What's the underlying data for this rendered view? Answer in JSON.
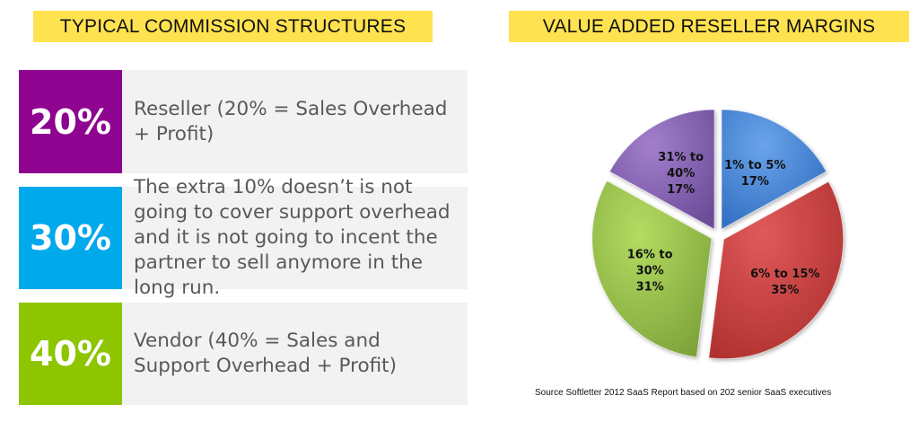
{
  "left": {
    "title": "TYPICAL COMMISSION STRUCTURES",
    "rows": [
      {
        "percent": "20%",
        "text": "Reseller (20% = Sales Overhead + Profit)",
        "color": "#8e0390"
      },
      {
        "percent": "30%",
        "text": "The extra 10% doesn’t is not going to cover support overhead and it is not going to incent the partner to sell anymore in the long run.",
        "color": "#00a8ec"
      },
      {
        "percent": "40%",
        "text": "Vendor (40% = Sales and Support Overhead + Profit)",
        "color": "#8dc500"
      }
    ]
  },
  "right": {
    "title": "VALUE ADDED RESELLER MARGINS",
    "source": "Source Softletter 2012 SaaS Report based on 202 senior SaaS executives"
  },
  "colors": {
    "title_bg": "#fee250",
    "row_bg": "#f2f2f2",
    "row_text": "#595959"
  },
  "chart_data": {
    "type": "pie",
    "title": "VALUE ADDED RESELLER MARGINS",
    "categories": [
      "1% to 5%",
      "6% to 15%",
      "16% to 30%",
      "31% to 40%"
    ],
    "values": [
      17,
      35,
      31,
      17
    ],
    "labels": [
      [
        "1% to 5%",
        "17%"
      ],
      [
        "6% to 15%",
        "35%"
      ],
      [
        "16% to",
        "30%",
        "31%"
      ],
      [
        "31% to",
        "40%",
        "17%"
      ]
    ],
    "colors": [
      "#4a86d6",
      "#d04141",
      "#9bc94a",
      "#8661b3"
    ],
    "exploded": true,
    "start_angle_deg": 0,
    "direction": "clockwise",
    "legend": "none",
    "annotation": "Source Softletter 2012 SaaS Report based on 202 senior SaaS executives"
  }
}
